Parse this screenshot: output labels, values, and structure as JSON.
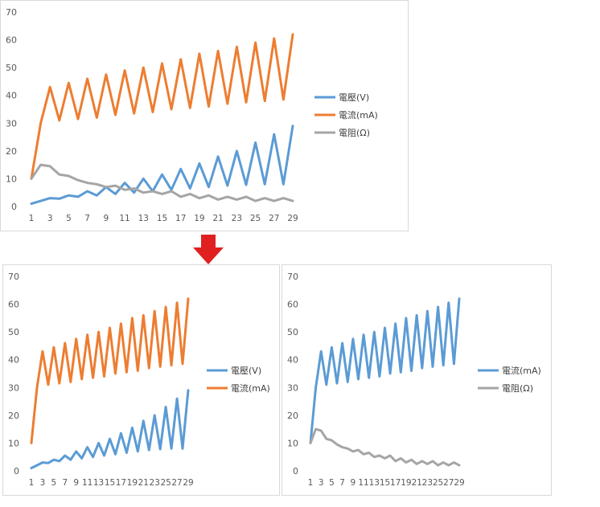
{
  "colors": {
    "voltage": "#5b9bd5",
    "current": "#ed7d31",
    "resistance": "#a5a5a5",
    "arrow": "#e02020",
    "gridless": "none"
  },
  "chart_data": [
    {
      "id": "top",
      "type": "line",
      "title": "",
      "xlabel": "",
      "ylabel": "",
      "categories": [
        "1",
        "2",
        "3",
        "4",
        "5",
        "6",
        "7",
        "8",
        "9",
        "10",
        "11",
        "12",
        "13",
        "14",
        "15",
        "16",
        "17",
        "18",
        "19",
        "20",
        "21",
        "22",
        "23",
        "24",
        "25",
        "26",
        "27",
        "28",
        "29"
      ],
      "x_tick_labels": [
        "1",
        "3",
        "5",
        "7",
        "9",
        "11",
        "13",
        "15",
        "17",
        "19",
        "21",
        "23",
        "25",
        "27",
        "29"
      ],
      "y_tick_labels": [
        "0",
        "10",
        "20",
        "30",
        "40",
        "50",
        "60",
        "70"
      ],
      "ylim": [
        0,
        70
      ],
      "grid": false,
      "legend": "right",
      "series": [
        {
          "name": "電壓(V)",
          "color_key": "voltage",
          "values": [
            1,
            2,
            3,
            2.8,
            4,
            3.5,
            5.5,
            4,
            7,
            4.5,
            8.5,
            5,
            10,
            5.5,
            11.5,
            6,
            13.5,
            6.5,
            15.5,
            7,
            18,
            7.5,
            20,
            7.8,
            23,
            8,
            26,
            8,
            29
          ]
        },
        {
          "name": "電流(mA)",
          "color_key": "current",
          "values": [
            10,
            30,
            43,
            31,
            44.5,
            31.5,
            46,
            32,
            47.5,
            33,
            49,
            33.5,
            50,
            34,
            51.5,
            35,
            53,
            35.5,
            55,
            36,
            56,
            37,
            57.5,
            37.5,
            59,
            38,
            60.5,
            38.5,
            62
          ]
        },
        {
          "name": "電阻(Ω)",
          "color_key": "resistance",
          "values": [
            10,
            15,
            14.5,
            11.5,
            11,
            9.5,
            8.5,
            8,
            7,
            7.5,
            6,
            6.5,
            5,
            5.5,
            4.5,
            5.5,
            3.5,
            4.5,
            3,
            4,
            2.5,
            3.5,
            2.5,
            3.5,
            2,
            3,
            2,
            3,
            2
          ]
        }
      ]
    },
    {
      "id": "bottom-left",
      "type": "line",
      "title": "",
      "xlabel": "",
      "ylabel": "",
      "categories": [
        "1",
        "2",
        "3",
        "4",
        "5",
        "6",
        "7",
        "8",
        "9",
        "10",
        "11",
        "12",
        "13",
        "14",
        "15",
        "16",
        "17",
        "18",
        "19",
        "20",
        "21",
        "22",
        "23",
        "24",
        "25",
        "26",
        "27",
        "28",
        "29"
      ],
      "x_tick_labels": [
        "1",
        "3",
        "5",
        "7",
        "9",
        "11",
        "13",
        "15",
        "17",
        "19",
        "21",
        "23",
        "25",
        "27",
        "29"
      ],
      "y_tick_labels": [
        "0",
        "10",
        "20",
        "30",
        "40",
        "50",
        "60",
        "70"
      ],
      "ylim": [
        0,
        70
      ],
      "grid": false,
      "legend": "right",
      "series": [
        {
          "name": "電壓(V)",
          "color_key": "voltage",
          "values": [
            1,
            2,
            3,
            2.8,
            4,
            3.5,
            5.5,
            4,
            7,
            4.5,
            8.5,
            5,
            10,
            5.5,
            11.5,
            6,
            13.5,
            6.5,
            15.5,
            7,
            18,
            7.5,
            20,
            7.8,
            23,
            8,
            26,
            8,
            29
          ]
        },
        {
          "name": "電流(mA)",
          "color_key": "current",
          "values": [
            10,
            30,
            43,
            31,
            44.5,
            31.5,
            46,
            32,
            47.5,
            33,
            49,
            33.5,
            50,
            34,
            51.5,
            35,
            53,
            35.5,
            55,
            36,
            56,
            37,
            57.5,
            37.5,
            59,
            38,
            60.5,
            38.5,
            62
          ]
        }
      ]
    },
    {
      "id": "bottom-right",
      "type": "line",
      "title": "",
      "xlabel": "",
      "ylabel": "",
      "categories": [
        "1",
        "2",
        "3",
        "4",
        "5",
        "6",
        "7",
        "8",
        "9",
        "10",
        "11",
        "12",
        "13",
        "14",
        "15",
        "16",
        "17",
        "18",
        "19",
        "20",
        "21",
        "22",
        "23",
        "24",
        "25",
        "26",
        "27",
        "28",
        "29"
      ],
      "x_tick_labels": [
        "1",
        "3",
        "5",
        "7",
        "9",
        "11",
        "13",
        "15",
        "17",
        "19",
        "21",
        "23",
        "25",
        "27",
        "29"
      ],
      "y_tick_labels": [
        "0",
        "10",
        "20",
        "30",
        "40",
        "50",
        "60",
        "70"
      ],
      "ylim": [
        0,
        70
      ],
      "grid": false,
      "legend": "right",
      "series": [
        {
          "name": "電流(mA)",
          "color_key": "voltage",
          "values": [
            10,
            30,
            43,
            31,
            44.5,
            31.5,
            46,
            32,
            47.5,
            33,
            49,
            33.5,
            50,
            34,
            51.5,
            35,
            53,
            35.5,
            55,
            36,
            56,
            37,
            57.5,
            37.5,
            59,
            38,
            60.5,
            38.5,
            62
          ]
        },
        {
          "name": "電阻(Ω)",
          "color_key": "resistance",
          "values": [
            10,
            15,
            14.5,
            11.5,
            11,
            9.5,
            8.5,
            8,
            7,
            7.5,
            6,
            6.5,
            5,
            5.5,
            4.5,
            5.5,
            3.5,
            4.5,
            3,
            4,
            2.5,
            3.5,
            2.5,
            3.5,
            2,
            3,
            2,
            3,
            2
          ]
        }
      ]
    }
  ]
}
